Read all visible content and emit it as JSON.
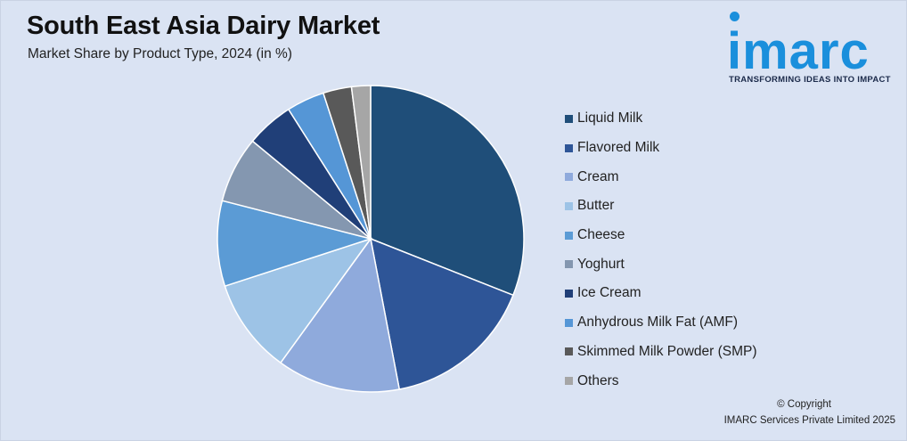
{
  "chart_data": {
    "type": "pie",
    "title": "South East Asia Dairy Market",
    "subtitle": "Market Share by Product Type, 2024 (in %)",
    "legend_position": "right",
    "series": [
      {
        "label": "Liquid Milk",
        "value": 31.0,
        "color": "#1f4e79"
      },
      {
        "label": "Flavored Milk",
        "value": 16.0,
        "color": "#2e5597"
      },
      {
        "label": "Cream",
        "value": 13.0,
        "color": "#8faadc"
      },
      {
        "label": "Butter",
        "value": 10.0,
        "color": "#9dc3e6"
      },
      {
        "label": "Cheese",
        "value": 9.0,
        "color": "#5b9bd5"
      },
      {
        "label": "Yoghurt",
        "value": 7.0,
        "color": "#8497b0"
      },
      {
        "label": "Ice Cream",
        "value": 5.0,
        "color": "#203f78"
      },
      {
        "label": "Anhydrous Milk Fat (AMF)",
        "value": 4.0,
        "color": "#5596d6"
      },
      {
        "label": "Skimmed Milk Powder (SMP)",
        "value": 3.0,
        "color": "#595959"
      },
      {
        "label": "Others",
        "value": 2.0,
        "color": "#a6a6a6"
      }
    ]
  },
  "logo": {
    "text": "imarc",
    "tagline": "TRANSFORMING IDEAS INTO IMPACT"
  },
  "copyright": {
    "line1": "© Copyright",
    "line2": "IMARC Services Private Limited 2025"
  }
}
